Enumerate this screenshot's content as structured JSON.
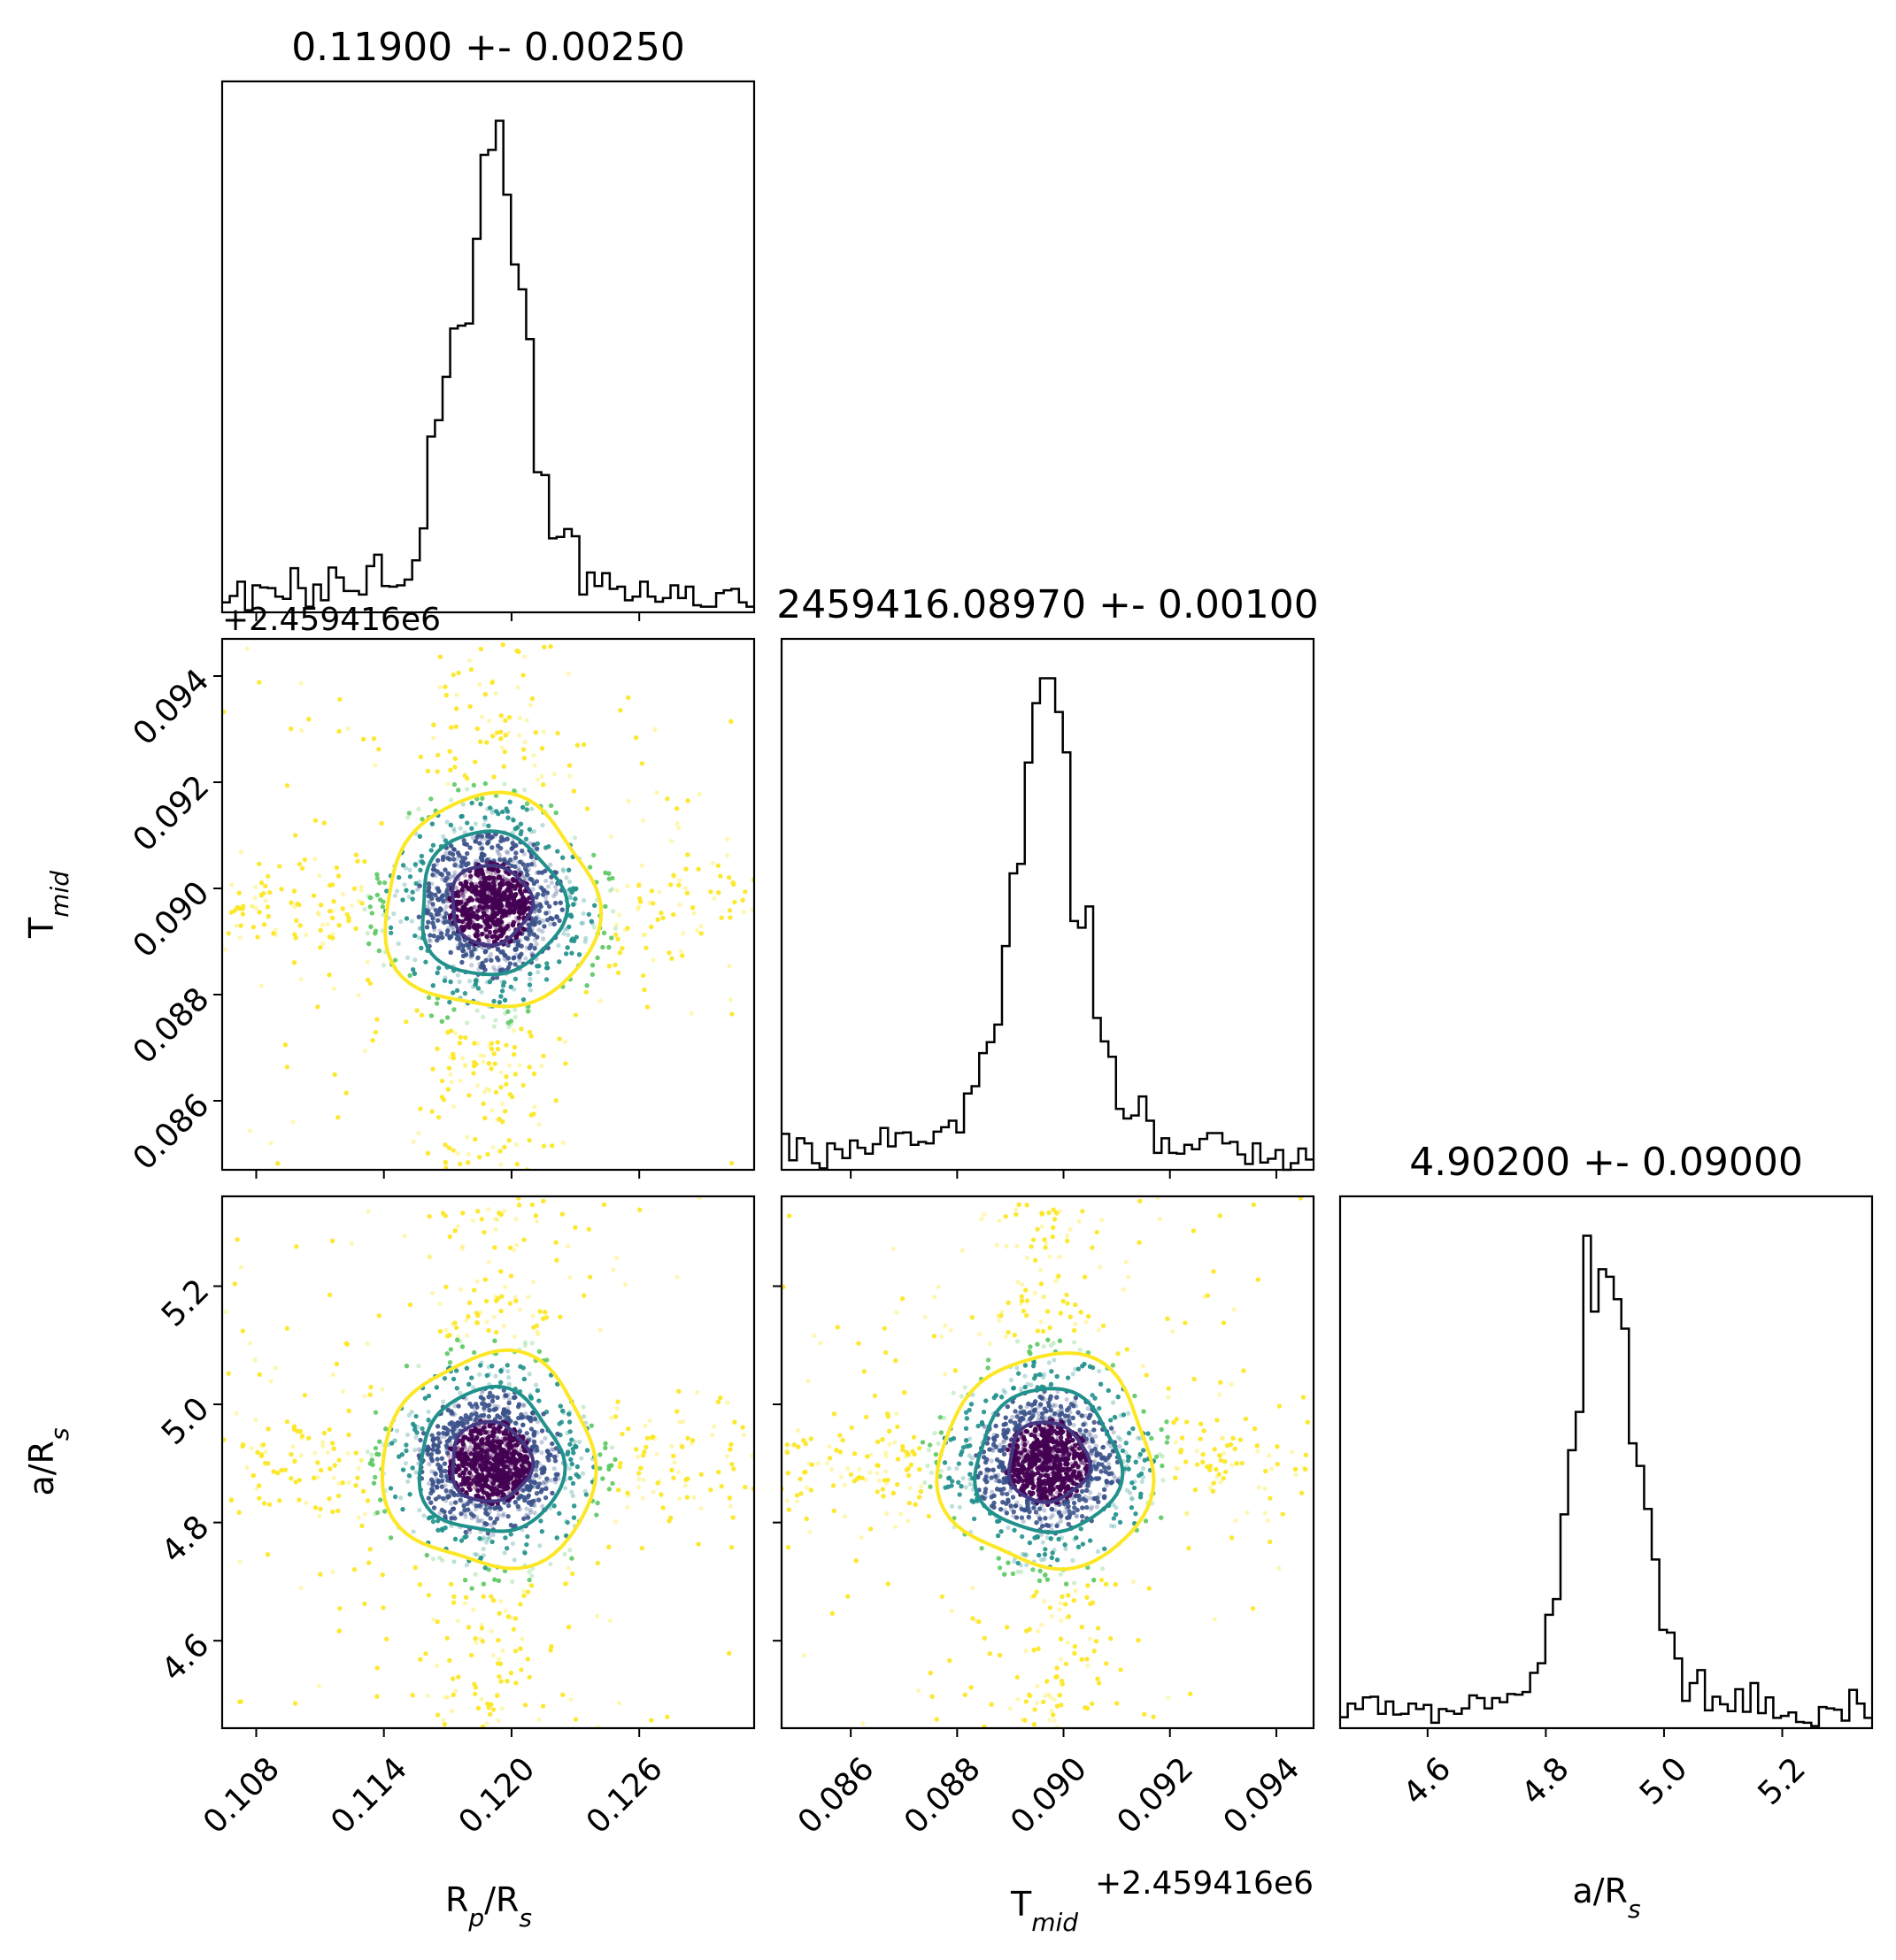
{
  "chart_data": {
    "type": "corner",
    "parameters": [
      {
        "key": "rprs",
        "label_main": "R",
        "label_sub": "p",
        "label_mid": "/R",
        "label_sub2": "s",
        "title": "0.11900 +- 0.00250",
        "median": 0.119,
        "sigma": 0.0025,
        "range": [
          0.1064,
          0.1314
        ],
        "ticks": [
          "0.108",
          "0.114",
          "0.120",
          "0.126"
        ],
        "tick_values": [
          0.108,
          0.114,
          0.12,
          0.126
        ],
        "offset_text": ""
      },
      {
        "key": "tmid",
        "label_main": "T",
        "label_sub": "mid",
        "label_mid": "",
        "label_sub2": "",
        "title": "2459416.08970 +- 0.00100",
        "median": 0.0897,
        "sigma": 0.001,
        "range": [
          0.0847,
          0.0947
        ],
        "ticks": [
          "0.086",
          "0.088",
          "0.090",
          "0.092",
          "0.094"
        ],
        "tick_values": [
          0.086,
          0.088,
          0.09,
          0.092,
          0.094
        ],
        "offset_text": "+2.459416e6"
      },
      {
        "key": "ars",
        "label_main": "a/R",
        "label_sub": "s",
        "label_mid": "",
        "label_sub2": "",
        "title": "4.90200 +- 0.09000",
        "median": 4.902,
        "sigma": 0.09,
        "range": [
          4.452,
          5.352
        ],
        "ticks": [
          "4.6",
          "4.8",
          "5.0",
          "5.2"
        ],
        "tick_values": [
          4.6,
          4.8,
          5.0,
          5.2
        ],
        "offset_text": ""
      }
    ],
    "colors": {
      "histogram": "#000000",
      "contour_1sigma": "#443983",
      "contour_2sigma": "#21918c",
      "contour_3sigma": "#fde725",
      "scatter_inner": "#440154",
      "scatter_mid": "#21918c",
      "scatter_outer": "#fde725"
    }
  }
}
